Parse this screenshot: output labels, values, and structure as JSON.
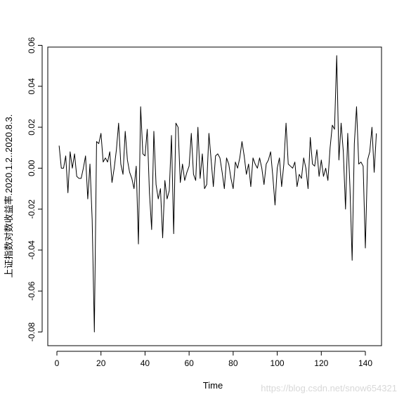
{
  "chart_data": {
    "type": "line",
    "xlabel": "Time",
    "ylabel": "上证指数对数收益率.2020.1.2..2020.8.3.",
    "xlim": [
      1,
      141
    ],
    "ylim": [
      -0.085,
      0.06
    ],
    "x_ticks": [
      "0",
      "20",
      "40",
      "60",
      "80",
      "100",
      "120",
      "140"
    ],
    "y_ticks": [
      "-0.08",
      "-0.06",
      "-0.04",
      "-0.02",
      "0.00",
      "0.02",
      "0.04",
      "0.06"
    ],
    "series": [
      {
        "values": [
          0.011,
          0.0,
          0.0,
          0.006,
          -0.012,
          0.008,
          0.0,
          0.007,
          -0.004,
          -0.005,
          -0.005,
          0.0,
          0.006,
          -0.015,
          0.002,
          -0.025,
          -0.08,
          0.013,
          0.012,
          0.017,
          0.003,
          0.005,
          0.003,
          0.008,
          -0.007,
          0.0,
          0.009,
          0.022,
          0.002,
          -0.003,
          0.018,
          0.004,
          -0.002,
          -0.005,
          -0.01,
          0.001,
          -0.037,
          0.03,
          0.007,
          0.006,
          0.019,
          -0.012,
          -0.03,
          0.018,
          -0.008,
          -0.015,
          -0.01,
          -0.034,
          -0.006,
          -0.015,
          -0.011,
          0.016,
          -0.032,
          0.022,
          0.02,
          -0.007,
          0.002,
          -0.006,
          -0.002,
          0.001,
          0.017,
          -0.003,
          -0.006,
          0.02,
          -0.005,
          0.007,
          -0.01,
          -0.008,
          0.017,
          0.004,
          -0.009,
          0.006,
          0.007,
          0.005,
          -0.002,
          -0.01,
          0.005,
          0.002,
          -0.005,
          -0.01,
          0.003,
          0.0,
          0.005,
          0.013,
          0.006,
          -0.003,
          0.002,
          -0.009,
          0.005,
          0.002,
          0.0,
          0.005,
          0.0,
          -0.008,
          0.002,
          0.004,
          0.008,
          -0.004,
          -0.018,
          0.0,
          0.005,
          -0.009,
          0.002,
          0.022,
          0.002,
          0.001,
          0.0,
          0.003,
          -0.009,
          -0.003,
          -0.005,
          0.005,
          0.0,
          -0.01,
          0.015,
          0.002,
          0.001,
          0.009,
          -0.004,
          0.004,
          -0.004,
          0.0,
          -0.006,
          0.01,
          0.021,
          0.019,
          0.055,
          0.004,
          0.022,
          0.008,
          -0.02,
          0.017,
          -0.009,
          -0.045,
          0.012,
          0.03,
          0.002,
          0.003,
          0.001,
          -0.039,
          0.004,
          0.008,
          0.02,
          -0.002,
          0.017
        ]
      }
    ]
  },
  "watermark": "https://blog.csdn.net/snow654321"
}
